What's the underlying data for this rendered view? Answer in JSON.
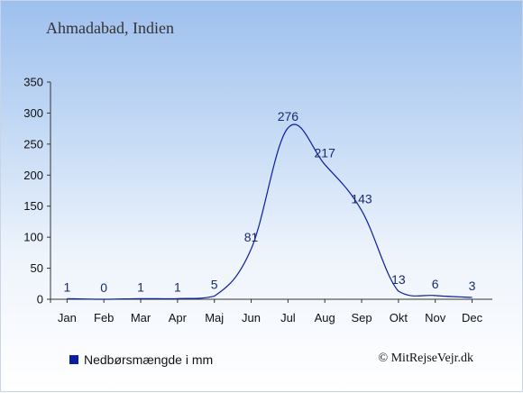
{
  "chart_data": {
    "type": "line",
    "title": "Ahmadabad, Indien",
    "categories": [
      "Jan",
      "Feb",
      "Mar",
      "Apr",
      "Maj",
      "Jun",
      "Jul",
      "Aug",
      "Sep",
      "Okt",
      "Nov",
      "Dec"
    ],
    "series": [
      {
        "name": "Nedbørsmængde i mm",
        "values": [
          1,
          0,
          1,
          1,
          5,
          81,
          276,
          217,
          143,
          13,
          6,
          3
        ]
      }
    ],
    "ylim": [
      0,
      350
    ],
    "yticks": [
      0,
      50,
      100,
      150,
      200,
      250,
      300,
      350
    ],
    "grid": false,
    "legend_position": "bottom-left",
    "line_color": "#0a1fa0"
  },
  "credit": "© MitRejseVejr.dk"
}
